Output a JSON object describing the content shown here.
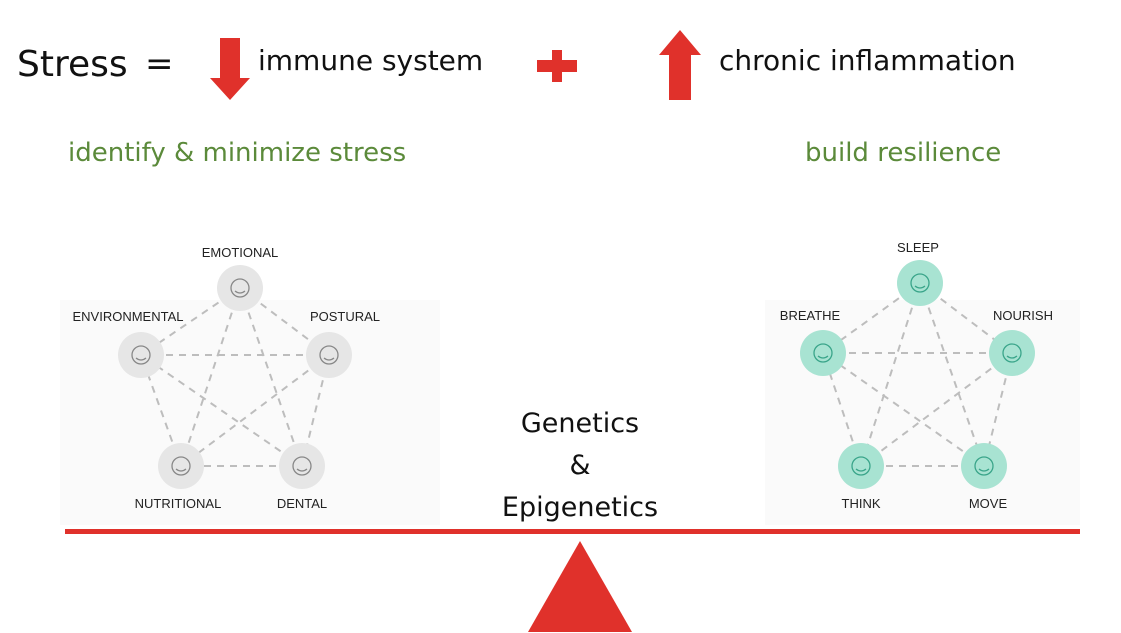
{
  "equation": {
    "stress": "Stress",
    "equals": "=",
    "down_item": "immune system",
    "up_item": "chronic inflammation",
    "arrow_color": "#e0312b"
  },
  "left_heading": "identify & minimize stress",
  "right_heading": "build resilience",
  "heading_color": "#5b8a3a",
  "stressors": {
    "color": "#e6e6e6",
    "nodes": [
      {
        "label": "EMOTIONAL",
        "icon": "worried-face-icon"
      },
      {
        "label": "POSTURAL",
        "icon": "back-spine-icon"
      },
      {
        "label": "DENTAL",
        "icon": "tooth-icon"
      },
      {
        "label": "NUTRITIONAL",
        "icon": "food-bowl-icon"
      },
      {
        "label": "ENVIRONMENTAL",
        "icon": "lightbulb-burst-icon"
      }
    ]
  },
  "resilience": {
    "color": "#a8e3d2",
    "nodes": [
      {
        "label": "SLEEP",
        "icon": "moon-zzz-icon"
      },
      {
        "label": "NOURISH",
        "icon": "food-bowl-icon"
      },
      {
        "label": "MOVE",
        "icon": "running-shoe-icon"
      },
      {
        "label": "THINK",
        "icon": "lightbulb-icon"
      },
      {
        "label": "BREATHE",
        "icon": "lungs-icon"
      }
    ]
  },
  "fulcrum": {
    "line1": "Genetics",
    "line2": "&",
    "line3": "Epigenetics",
    "color": "#e0312b"
  }
}
